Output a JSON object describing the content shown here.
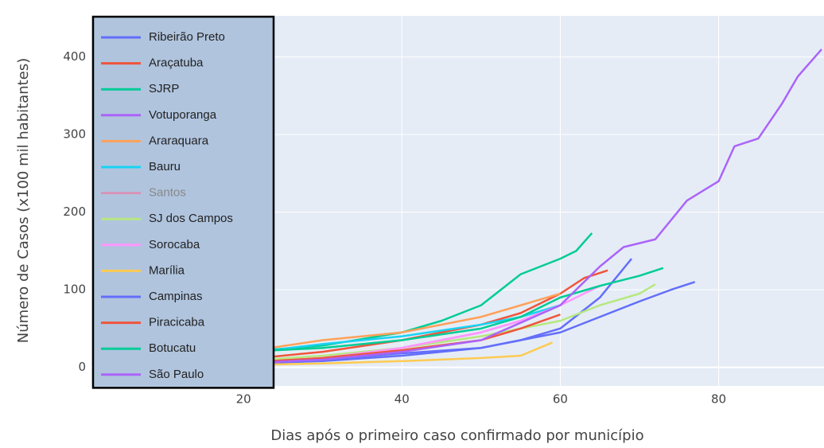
{
  "chart_data": {
    "type": "line",
    "x_label": "Dias após o primeiro caso confirmado por município",
    "y_label": "Número de Casos (x100 mil habitantes)",
    "xlim": [
      0.8,
      93.3
    ],
    "ylim": [
      -24,
      453
    ],
    "xticks": [
      20,
      40,
      60,
      80
    ],
    "yticks": [
      0,
      100,
      200,
      300,
      400
    ],
    "grid": true,
    "legend": "top-left",
    "series": [
      {
        "name": "Ribeirão Preto",
        "color": "#636efa",
        "x": [
          1,
          10,
          20,
          30,
          40,
          50,
          55,
          60,
          65,
          69
        ],
        "values": [
          0,
          2,
          5,
          8,
          15,
          25,
          35,
          50,
          90,
          140
        ]
      },
      {
        "name": "Araçatuba",
        "color": "#ef553b",
        "x": [
          1,
          10,
          20,
          30,
          40,
          50,
          55,
          60,
          63,
          66
        ],
        "values": [
          0,
          3,
          10,
          20,
          35,
          55,
          70,
          95,
          115,
          125
        ]
      },
      {
        "name": "SJRP",
        "color": "#00cc96",
        "x": [
          1,
          10,
          20,
          30,
          40,
          45,
          50,
          55,
          60,
          62,
          64
        ],
        "values": [
          5,
          10,
          20,
          28,
          45,
          60,
          80,
          120,
          140,
          150,
          173
        ]
      },
      {
        "name": "Votuporanga",
        "color": "#ab63fa",
        "x": [
          1,
          10,
          20,
          30,
          40,
          50,
          55,
          60
        ],
        "values": [
          0,
          2,
          5,
          10,
          25,
          45,
          60,
          80
        ]
      },
      {
        "name": "Araraquara",
        "color": "#ffa15a",
        "x": [
          1,
          10,
          20,
          30,
          40,
          50,
          55,
          60
        ],
        "values": [
          3,
          10,
          20,
          35,
          45,
          65,
          80,
          95
        ]
      },
      {
        "name": "Bauru",
        "color": "#19d3f3",
        "x": [
          1,
          10,
          20,
          30,
          40,
          50,
          55,
          60
        ],
        "values": [
          2,
          8,
          18,
          30,
          40,
          55,
          65,
          80
        ]
      },
      {
        "name": "Santos",
        "color": "#ff6692",
        "hidden": true
      },
      {
        "name": "SJ dos Campos",
        "color": "#b6e880",
        "x": [
          1,
          10,
          20,
          30,
          40,
          50,
          55,
          60,
          65,
          70,
          72
        ],
        "values": [
          0,
          3,
          8,
          15,
          25,
          40,
          50,
          60,
          80,
          95,
          107
        ]
      },
      {
        "name": "Sorocaba",
        "color": "#ff97ff",
        "x": [
          1,
          10,
          20,
          30,
          40,
          50,
          55,
          60,
          65
        ],
        "values": [
          0,
          2,
          6,
          12,
          25,
          45,
          60,
          80,
          105
        ]
      },
      {
        "name": "Marília",
        "color": "#fecb52",
        "x": [
          1,
          10,
          20,
          30,
          40,
          50,
          55,
          59
        ],
        "values": [
          0,
          1,
          3,
          5,
          8,
          12,
          15,
          32
        ]
      },
      {
        "name": "Campinas",
        "color": "#636efa",
        "x": [
          1,
          10,
          20,
          30,
          40,
          50,
          55,
          60,
          65,
          70,
          74,
          77
        ],
        "values": [
          0,
          2,
          5,
          10,
          18,
          25,
          35,
          45,
          65,
          85,
          100,
          110
        ]
      },
      {
        "name": "Piracicaba",
        "color": "#ef553b",
        "x": [
          1,
          10,
          20,
          30,
          40,
          50,
          55,
          60
        ],
        "values": [
          0,
          2,
          6,
          12,
          22,
          35,
          50,
          68
        ]
      },
      {
        "name": "Botucatu",
        "color": "#00cc96",
        "x": [
          1,
          10,
          20,
          30,
          40,
          50,
          55,
          60,
          65,
          70,
          73
        ],
        "values": [
          5,
          12,
          20,
          25,
          35,
          50,
          65,
          90,
          105,
          118,
          128
        ]
      },
      {
        "name": "São Paulo",
        "color": "#ab63fa",
        "x": [
          1,
          10,
          20,
          30,
          40,
          50,
          60,
          65,
          68,
          72,
          76,
          80,
          82,
          85,
          88,
          90,
          93
        ],
        "values": [
          0,
          2,
          5,
          10,
          20,
          35,
          80,
          130,
          155,
          165,
          215,
          240,
          285,
          295,
          340,
          375,
          410
        ]
      }
    ]
  }
}
